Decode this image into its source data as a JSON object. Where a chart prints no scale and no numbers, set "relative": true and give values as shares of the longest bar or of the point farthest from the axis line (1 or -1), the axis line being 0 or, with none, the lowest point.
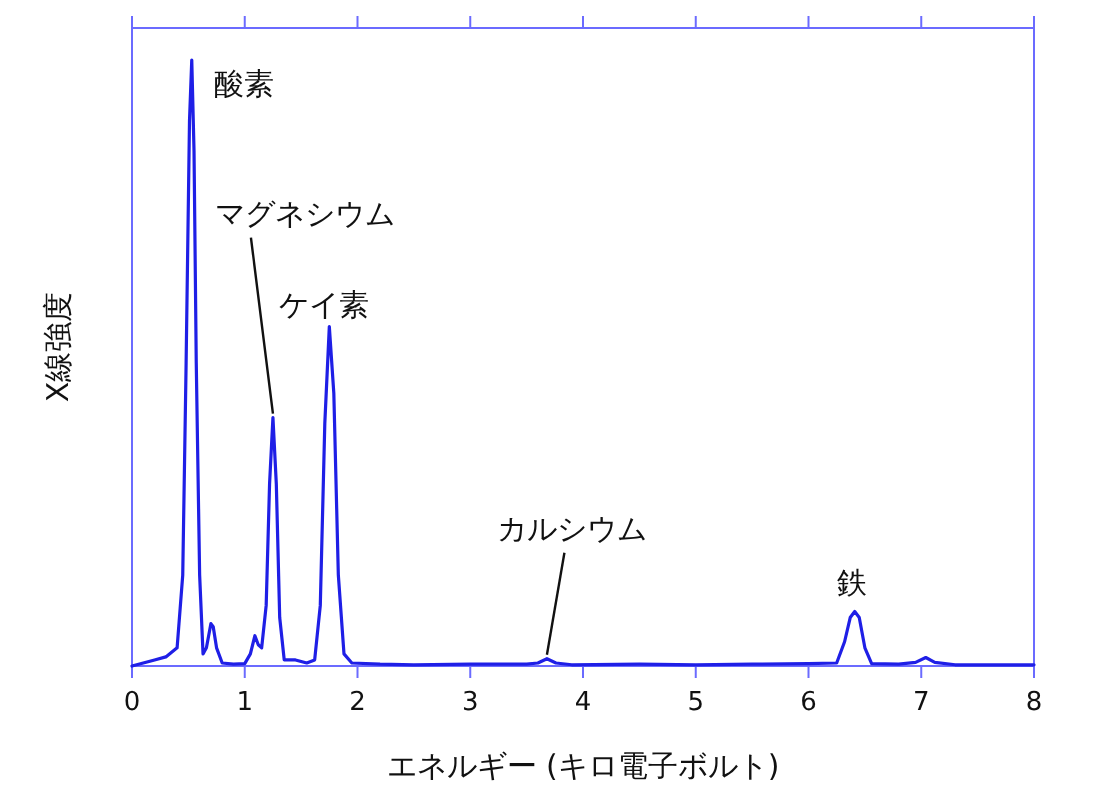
{
  "chart_data": {
    "type": "line",
    "xlabel": "エネルギー (キロ電子ボルト)",
    "ylabel": "X線強度",
    "relative": true,
    "tick_labels": "x",
    "xlim": [
      0,
      8
    ],
    "xticks": [
      0,
      1,
      2,
      3,
      4,
      5,
      6,
      7,
      8
    ],
    "marker": "none",
    "line_style": "solid",
    "series": [
      {
        "color": "#1f1fe6",
        "x": [
          0,
          0.1,
          0.2,
          0.3,
          0.4,
          0.45,
          0.48,
          0.51,
          0.53,
          0.55,
          0.57,
          0.6,
          0.63,
          0.66,
          0.7,
          0.72,
          0.75,
          0.8,
          0.9,
          1.0,
          1.05,
          1.09,
          1.12,
          1.15,
          1.19,
          1.22,
          1.25,
          1.28,
          1.31,
          1.35,
          1.45,
          1.55,
          1.62,
          1.67,
          1.71,
          1.75,
          1.79,
          1.83,
          1.88,
          1.95,
          2.2,
          2.5,
          3,
          3.5,
          3.6,
          3.68,
          3.76,
          3.9,
          4.5,
          5,
          5.5,
          6.0,
          6.25,
          6.32,
          6.37,
          6.41,
          6.45,
          6.5,
          6.56,
          6.8,
          6.95,
          7.04,
          7.12,
          7.3,
          7.6,
          8.0
        ],
        "values": [
          0,
          0.005,
          0.01,
          0.015,
          0.03,
          0.15,
          0.5,
          0.9,
          1.0,
          0.85,
          0.5,
          0.15,
          0.02,
          0.03,
          0.07,
          0.065,
          0.03,
          0.005,
          0.003,
          0.004,
          0.02,
          0.05,
          0.035,
          0.03,
          0.1,
          0.3,
          0.41,
          0.3,
          0.08,
          0.01,
          0.01,
          0.005,
          0.01,
          0.1,
          0.4,
          0.56,
          0.45,
          0.15,
          0.02,
          0.005,
          0.003,
          0.002,
          0.003,
          0.003,
          0.005,
          0.012,
          0.005,
          0.002,
          0.003,
          0.002,
          0.003,
          0.004,
          0.005,
          0.04,
          0.08,
          0.09,
          0.08,
          0.03,
          0.004,
          0.003,
          0.006,
          0.014,
          0.006,
          0.002,
          0.002,
          0.002
        ]
      }
    ],
    "annotations": [
      {
        "text": "酸素",
        "x": 0.53,
        "y": 1.0
      },
      {
        "text": "マグネシウム",
        "x": 1.25,
        "y": 0.41
      },
      {
        "text": "ケイ素",
        "x": 1.75,
        "y": 0.56
      },
      {
        "text": "カルシウム",
        "x": 3.68,
        "y": 0.012
      },
      {
        "text": "鉄",
        "x": 6.41,
        "y": 0.09
      }
    ]
  }
}
